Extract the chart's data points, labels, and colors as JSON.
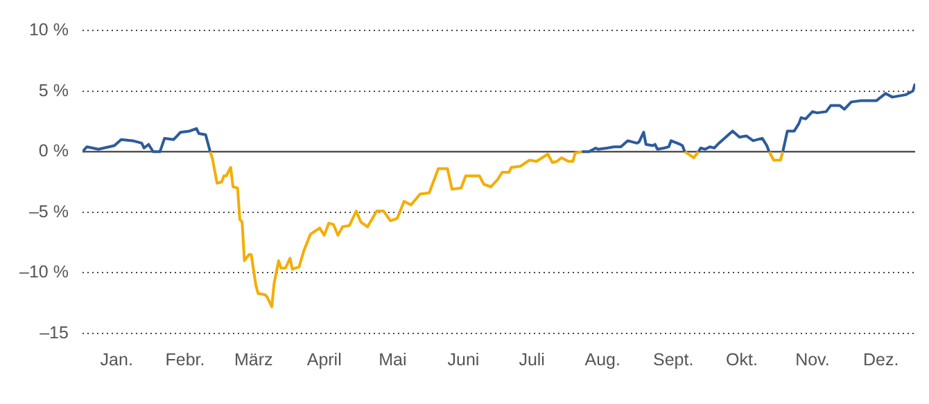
{
  "chart_data": {
    "type": "line",
    "xlim": [
      "--01-01",
      "--12-31"
    ],
    "xticks": [
      {
        "value": "--01-16",
        "label": "Jan."
      },
      {
        "value": "--02-15",
        "label": "Febr."
      },
      {
        "value": "--03-16",
        "label": "März"
      },
      {
        "value": "--04-16",
        "label": "April"
      },
      {
        "value": "--05-16",
        "label": "Mai"
      },
      {
        "value": "--06-16",
        "label": "Juni"
      },
      {
        "value": "--07-16",
        "label": "Juli"
      },
      {
        "value": "--08-16",
        "label": "Aug."
      },
      {
        "value": "--09-16",
        "label": "Sept."
      },
      {
        "value": "--10-16",
        "label": "Okt."
      },
      {
        "value": "--11-16",
        "label": "Nov."
      },
      {
        "value": "--12-16",
        "label": "Dez."
      }
    ],
    "ylim": [
      -15,
      10
    ],
    "yticks": [
      {
        "value": 10,
        "label": "10 %"
      },
      {
        "value": 5,
        "label": "5 %"
      },
      {
        "value": 0,
        "label": "0 %"
      },
      {
        "value": -5,
        "label": "–5 %"
      },
      {
        "value": -10,
        "label": "–10 %"
      },
      {
        "value": -15,
        "label": "–15"
      }
    ],
    "grid": "y",
    "marker": "none",
    "line_style": "solid",
    "ref_lines": [
      {
        "axis": "y",
        "value": 0,
        "color": "#55534e"
      }
    ],
    "series": [
      {
        "color": "#2d5b9c",
        "x": [
          "--01-01",
          "--01-03",
          "--01-08",
          "--01-15",
          "--01-18",
          "--01-23",
          "--01-27",
          "--01-28",
          "--01-30",
          "--02-01",
          "--02-04",
          "--02-06",
          "--02-10",
          "--02-13",
          "--02-17",
          "--02-20",
          "--02-21",
          "--02-24",
          "--02-26",
          "--04-01",
          "--08-07",
          "--08-10",
          "--08-13",
          "--08-14",
          "--08-18",
          "--08-21",
          "--08-24",
          "--08-27",
          "--08-31",
          "--09-01",
          "--09-03",
          "--09-04",
          "--09-07",
          "--09-08",
          "--09-09",
          "--09-12",
          "--09-14",
          "--09-15",
          "--09-19",
          "--09-20",
          "--09-21",
          "--09-24",
          "--09-27",
          "--09-28",
          "--09-30",
          "--10-02",
          "--10-04",
          "--10-06",
          "--10-09",
          "--10-12",
          "--10-15",
          "--10-18",
          "--10-21",
          "--10-25",
          "--10-27",
          "--10-28",
          "--10-31",
          "--11-03",
          "--11-05",
          "--11-08",
          "--11-10",
          "--11-11",
          "--11-13",
          "--11-16",
          "--11-18",
          "--11-22",
          "--11-24",
          "--11-28",
          "--11-30",
          "--12-03",
          "--12-07",
          "--12-14",
          "--12-18",
          "--12-21",
          "--12-24",
          "--12-27",
          "--12-30",
          "--12-31"
        ],
        "values": [
          0,
          0.4,
          0.2,
          0.5,
          1.0,
          0.9,
          0.7,
          0.3,
          0.6,
          0,
          0,
          1.1,
          1.0,
          1.6,
          1.7,
          1.9,
          1.5,
          1.4,
          0,
          null,
          0,
          0,
          0.3,
          0.2,
          0.3,
          0.4,
          0.4,
          0.9,
          0.7,
          0.8,
          1.6,
          0.6,
          0.5,
          0.6,
          0.2,
          0.3,
          0.4,
          0.9,
          0.6,
          0.5,
          0,
          null,
          0,
          0.3,
          0.2,
          0.4,
          0.3,
          0.7,
          1.2,
          1.7,
          1.2,
          1.3,
          0.9,
          1.1,
          0.5,
          0,
          null,
          0,
          1.7,
          1.7,
          2.3,
          2.8,
          2.7,
          3.3,
          3.2,
          3.3,
          3.8,
          3.8,
          3.5,
          4.1,
          4.2,
          4.2,
          4.8,
          4.5,
          4.6,
          4.7,
          5.0,
          5.6
        ]
      },
      {
        "color": "#f5ad00",
        "x": [
          "--02-26",
          "--02-27",
          "--02-29",
          "--03-02",
          "--03-03",
          "--03-04",
          "--03-06",
          "--03-07",
          "--03-09",
          "--03-10",
          "--03-11",
          "--03-12",
          "--03-14",
          "--03-15",
          "--03-17",
          "--03-18",
          "--03-21",
          "--03-22",
          "--03-24",
          "--03-25",
          "--03-27",
          "--03-28",
          "--03-30",
          "--04-01",
          "--04-02",
          "--04-05",
          "--04-07",
          "--04-10",
          "--04-14",
          "--04-16",
          "--04-18",
          "--04-20",
          "--04-22",
          "--04-24",
          "--04-27",
          "--04-30",
          "--05-02",
          "--05-05",
          "--05-09",
          "--05-12",
          "--05-15",
          "--05-18",
          "--05-21",
          "--05-24",
          "--05-28",
          "--06-01",
          "--06-05",
          "--06-09",
          "--06-11",
          "--06-15",
          "--06-17",
          "--06-23",
          "--06-25",
          "--06-28",
          "--07-01",
          "--07-03",
          "--07-06",
          "--07-07",
          "--07-11",
          "--07-15",
          "--07-18",
          "--07-23",
          "--07-25",
          "--07-27",
          "--07-29",
          "--08-01",
          "--08-03",
          "--08-04",
          "--08-07",
          "--09-01",
          "--09-21",
          "--09-25",
          "--09-27",
          "--10-10",
          "--10-28",
          "--10-30",
          "--11-02",
          "--11-03"
        ],
        "values": [
          0,
          -0.6,
          -2.6,
          -2.5,
          -2.0,
          -2.0,
          -1.3,
          -2.9,
          -3.0,
          -5.6,
          -5.8,
          -9.0,
          -8.5,
          -8.5,
          -11.0,
          -11.7,
          -11.8,
          -12.0,
          -12.8,
          -10.9,
          -9.0,
          -9.6,
          -9.6,
          -8.8,
          -9.7,
          -9.5,
          -8.2,
          -6.8,
          -6.3,
          -6.9,
          -5.9,
          -6.0,
          -6.9,
          -6.2,
          -6.1,
          -4.9,
          -5.8,
          -6.2,
          -4.9,
          -4.9,
          -5.7,
          -5.5,
          -4.1,
          -4.4,
          -3.5,
          -3.4,
          -1.4,
          -1.4,
          -3.1,
          -3.0,
          -2.0,
          -2.0,
          -2.7,
          -2.9,
          -2.3,
          -1.7,
          -1.7,
          -1.3,
          -1.2,
          -0.7,
          -0.8,
          -0.2,
          -0.9,
          -0.8,
          -0.5,
          -0.8,
          -0.8,
          -0.1,
          0,
          null,
          0,
          -0.5,
          0,
          null,
          0,
          -0.7,
          -0.7,
          0
        ]
      }
    ]
  }
}
